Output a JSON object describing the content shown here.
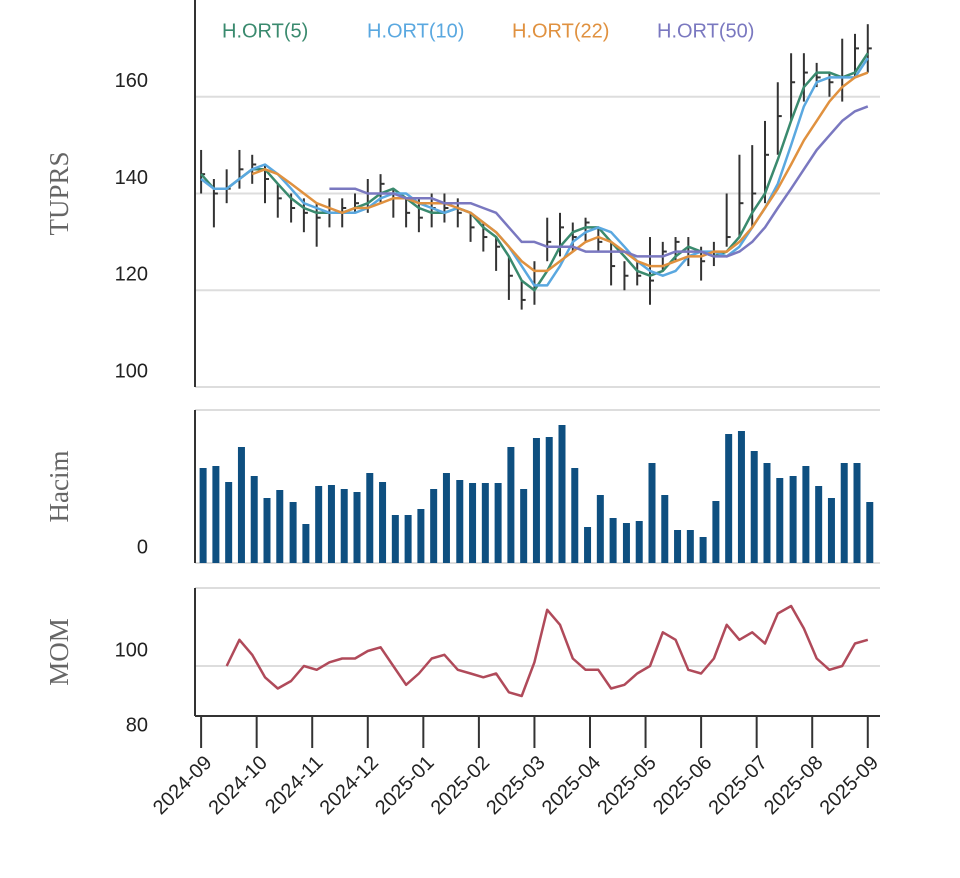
{
  "chart_data": [
    {
      "type": "ohlc",
      "ylabel": "TUPRS",
      "ylim": [
        100,
        180
      ],
      "yticks": [
        100,
        120,
        140,
        160
      ],
      "grid": true,
      "xlim": [
        -0.11,
        12.22
      ],
      "bar_color": "#333333",
      "x": [
        0,
        0.23,
        0.46,
        0.69,
        0.92,
        1.15,
        1.38,
        1.62,
        1.85,
        2.08,
        2.31,
        2.54,
        2.77,
        3.0,
        3.23,
        3.46,
        3.69,
        3.92,
        4.15,
        4.38,
        4.62,
        4.85,
        5.08,
        5.31,
        5.54,
        5.77,
        6.0,
        6.23,
        6.46,
        6.69,
        6.92,
        7.15,
        7.38,
        7.62,
        7.85,
        8.08,
        8.31,
        8.54,
        8.77,
        9.0,
        9.23,
        9.46,
        9.69,
        9.92,
        10.15,
        10.38,
        10.62,
        10.85,
        11.08,
        11.31,
        11.54,
        11.77,
        12.0
      ],
      "high": [
        149,
        143,
        145,
        149,
        148,
        146,
        142,
        140,
        139,
        138,
        139,
        139,
        140,
        143,
        144,
        141,
        139,
        139,
        140,
        140,
        139,
        136,
        134,
        131,
        127,
        122,
        126,
        135,
        136,
        134,
        135,
        133,
        130,
        126,
        126,
        131,
        130,
        131,
        131,
        129,
        130,
        140,
        148,
        150,
        155,
        163,
        169,
        169,
        167,
        165,
        172,
        173,
        175
      ],
      "low": [
        140,
        133,
        138,
        141,
        142,
        138,
        135,
        134,
        132,
        129,
        133,
        133,
        136,
        136,
        138,
        135,
        133,
        132,
        133,
        134,
        133,
        130,
        128,
        124,
        118,
        116,
        117,
        126,
        127,
        128,
        130,
        128,
        121,
        120,
        121,
        117,
        124,
        126,
        125,
        122,
        125,
        129,
        131,
        133,
        138,
        148,
        155,
        159,
        162,
        160,
        159,
        164,
        165
      ],
      "close": [
        144,
        140,
        141,
        145,
        146,
        143,
        139,
        137,
        136,
        135,
        136,
        137,
        138,
        140,
        142,
        139,
        136,
        135,
        137,
        137,
        136,
        133,
        131,
        129,
        123,
        118,
        121,
        130,
        133,
        131,
        134,
        130,
        125,
        123,
        123,
        122,
        128,
        130,
        128,
        126,
        128,
        131,
        138,
        140,
        148,
        156,
        163,
        165,
        164,
        163,
        164,
        170,
        170
      ],
      "series": [
        {
          "name": "H.ORT(5)",
          "color": "#3a8a6e",
          "values": [
            144,
            141,
            141,
            143,
            145,
            145,
            142,
            139,
            137,
            136,
            136,
            136,
            137,
            138,
            140,
            141,
            139,
            137,
            136,
            136,
            137,
            136,
            133,
            131,
            127,
            122,
            120,
            124,
            129,
            132,
            133,
            133,
            130,
            127,
            124,
            123,
            124,
            127,
            129,
            128,
            127,
            128,
            131,
            136,
            140,
            147,
            155,
            162,
            165,
            165,
            164,
            165,
            169
          ]
        },
        {
          "name": "H.ORT(10)",
          "color": "#5aa8e0",
          "values": [
            143,
            141,
            141,
            143,
            145,
            146,
            144,
            141,
            138,
            137,
            136,
            136,
            136,
            137,
            139,
            140,
            140,
            138,
            137,
            136,
            137,
            136,
            134,
            132,
            129,
            125,
            121,
            121,
            125,
            130,
            132,
            133,
            132,
            129,
            126,
            124,
            123,
            124,
            127,
            128,
            128,
            127,
            129,
            133,
            137,
            142,
            150,
            158,
            163,
            164,
            164,
            164,
            168
          ]
        },
        {
          "name": "H.ORT(22)",
          "color": "#e0913f",
          "values": [
            null,
            null,
            null,
            null,
            144,
            145,
            144,
            142,
            140,
            138,
            137,
            136,
            137,
            137,
            138,
            139,
            139,
            138,
            138,
            138,
            137,
            136,
            134,
            132,
            129,
            126,
            124,
            124,
            126,
            128,
            130,
            131,
            130,
            128,
            126,
            125,
            125,
            126,
            127,
            127,
            128,
            128,
            130,
            133,
            137,
            141,
            146,
            151,
            155,
            159,
            162,
            164,
            165
          ]
        },
        {
          "name": "H.ORT(50)",
          "color": "#7a78c0",
          "values": [
            null,
            null,
            null,
            null,
            null,
            null,
            null,
            null,
            null,
            null,
            141,
            141,
            141,
            140,
            140,
            140,
            139,
            139,
            139,
            138,
            138,
            138,
            137,
            136,
            133,
            130,
            130,
            129,
            129,
            129,
            128,
            128,
            128,
            128,
            127,
            127,
            127,
            128,
            128,
            128,
            127,
            127,
            128,
            130,
            133,
            137,
            141,
            145,
            149,
            152,
            155,
            157,
            158
          ]
        }
      ]
    },
    {
      "type": "bar",
      "ylabel": "Hacim",
      "ylim": [
        0,
        153
      ],
      "yticks": [
        0
      ],
      "color": "#0e4f80",
      "values": [
        95,
        97,
        81,
        116,
        87,
        65,
        73,
        61,
        39,
        77,
        78,
        74,
        71,
        90,
        81,
        48,
        48,
        54,
        74,
        90,
        83,
        80,
        80,
        80,
        116,
        74,
        125,
        126,
        138,
        95,
        36,
        68,
        45,
        40,
        42,
        100,
        68,
        33,
        33,
        26,
        62,
        129,
        132,
        112,
        100,
        85,
        87,
        97,
        77,
        65,
        100,
        100,
        61
      ]
    },
    {
      "type": "line",
      "ylabel": "MOM",
      "ylim": [
        80,
        120
      ],
      "yticks": [
        80,
        100
      ],
      "color": "#b04a5a",
      "values": [
        null,
        null,
        100,
        107,
        103,
        97,
        94,
        96,
        100,
        99,
        101,
        102,
        102,
        104,
        105,
        100,
        95,
        98,
        102,
        103,
        99,
        98,
        97,
        98,
        93,
        92,
        101,
        115,
        111,
        102,
        99,
        99,
        94,
        95,
        98,
        100,
        109,
        107,
        99,
        98,
        102,
        111,
        107,
        109,
        106,
        114,
        116,
        110,
        102,
        99,
        100,
        106,
        107
      ],
      "xticks": [
        {
          "value": 0,
          "label": "2024-09"
        },
        {
          "value": 1,
          "label": "2024-10"
        },
        {
          "value": 2,
          "label": "2024-11"
        },
        {
          "value": 3,
          "label": "2024-12"
        },
        {
          "value": 4,
          "label": "2025-01"
        },
        {
          "value": 5,
          "label": "2025-02"
        },
        {
          "value": 6,
          "label": "2025-03"
        },
        {
          "value": 7,
          "label": "2025-04"
        },
        {
          "value": 8,
          "label": "2025-05"
        },
        {
          "value": 9,
          "label": "2025-06"
        },
        {
          "value": 10,
          "label": "2025-07"
        },
        {
          "value": 11,
          "label": "2025-08"
        },
        {
          "value": 12,
          "label": "2025-09"
        }
      ]
    }
  ]
}
